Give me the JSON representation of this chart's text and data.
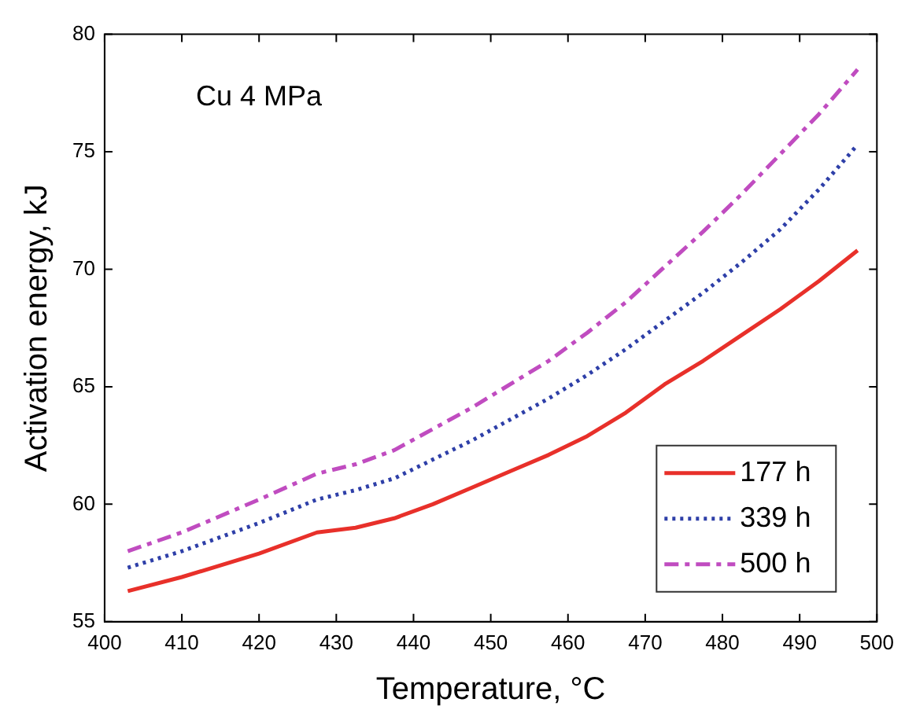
{
  "chart_data": {
    "type": "line",
    "xlabel": "Temperature, °C",
    "ylabel": "Activation energy, kJ",
    "annotations": [
      "Cu 4 MPa"
    ],
    "x": [
      403,
      410,
      420,
      427.5,
      432.5,
      437.5,
      442.5,
      447.5,
      452.5,
      457.5,
      462.5,
      467.5,
      472.5,
      477.5,
      482.5,
      487.5,
      492.5,
      497.5
    ],
    "series": [
      {
        "name": "177 h",
        "color": "#e8302a",
        "line_style": "solid",
        "values": [
          56.3,
          56.9,
          57.9,
          58.8,
          59.0,
          59.4,
          60.0,
          60.7,
          61.4,
          62.1,
          62.9,
          63.9,
          65.1,
          66.1,
          67.2,
          68.3,
          69.5,
          70.8
        ]
      },
      {
        "name": "339 h",
        "color": "#2e3fa8",
        "line_style": "dotted",
        "values": [
          57.3,
          58.0,
          59.2,
          60.2,
          60.6,
          61.1,
          61.9,
          62.7,
          63.6,
          64.5,
          65.5,
          66.6,
          67.8,
          69.0,
          70.3,
          71.7,
          73.4,
          75.3
        ]
      },
      {
        "name": "500 h",
        "color": "#c04cc0",
        "line_style": "dashed",
        "values": [
          58.0,
          58.8,
          60.2,
          61.3,
          61.7,
          62.3,
          63.2,
          64.1,
          65.1,
          66.1,
          67.3,
          68.6,
          70.1,
          71.6,
          73.2,
          74.9,
          76.6,
          78.5
        ]
      }
    ],
    "xlim": [
      400,
      500
    ],
    "xticks": [
      400,
      410,
      420,
      430,
      440,
      450,
      460,
      470,
      480,
      490,
      500
    ],
    "ylim": [
      55,
      80
    ],
    "yticks": [
      55,
      60,
      65,
      70,
      75,
      80
    ],
    "grid": false,
    "legend": "bottom right",
    "marker": "none"
  }
}
